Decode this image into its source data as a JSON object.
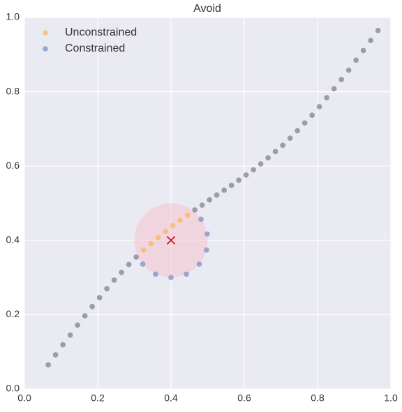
{
  "chart_data": {
    "type": "scatter",
    "title": "Avoid",
    "xlim": [
      0,
      1
    ],
    "ylim": [
      0,
      1
    ],
    "xticks": [
      {
        "value": 0,
        "label": "0.0"
      },
      0.2,
      0.4,
      0.6,
      0.8,
      {
        "value": 1,
        "label": "1.0"
      }
    ],
    "yticks": [
      {
        "value": 0,
        "label": "0.0"
      },
      0.2,
      0.4,
      0.6,
      0.8,
      {
        "value": 1,
        "label": "1.0"
      }
    ],
    "grid": true,
    "legend": "upper left",
    "series": [
      {
        "name": "Unconstrained",
        "color": "#f9b34a",
        "x": [
          0.065,
          0.085,
          0.105,
          0.125,
          0.145,
          0.165,
          0.185,
          0.205,
          0.225,
          0.245,
          0.265,
          0.285,
          0.305,
          0.325,
          0.345,
          0.365,
          0.385,
          0.405,
          0.425,
          0.445,
          0.465,
          0.485,
          0.505,
          0.525,
          0.545,
          0.565,
          0.585,
          0.605,
          0.625,
          0.645,
          0.665,
          0.685,
          0.705,
          0.725,
          0.745,
          0.765,
          0.785,
          0.805,
          0.825,
          0.845,
          0.865,
          0.885,
          0.905,
          0.925,
          0.945,
          0.965
        ],
        "y": [
          0.065,
          0.092,
          0.119,
          0.145,
          0.172,
          0.197,
          0.222,
          0.246,
          0.27,
          0.293,
          0.314,
          0.335,
          0.355,
          0.374,
          0.391,
          0.408,
          0.424,
          0.44,
          0.454,
          0.468,
          0.482,
          0.495,
          0.509,
          0.522,
          0.535,
          0.548,
          0.562,
          0.576,
          0.59,
          0.606,
          0.622,
          0.639,
          0.656,
          0.675,
          0.695,
          0.716,
          0.737,
          0.76,
          0.784,
          0.808,
          0.833,
          0.858,
          0.885,
          0.911,
          0.938,
          0.965
        ]
      },
      {
        "name": "Constrained",
        "color": "#6a86c0",
        "x": [
          0.065,
          0.085,
          0.105,
          0.125,
          0.145,
          0.165,
          0.185,
          0.205,
          0.225,
          0.245,
          0.265,
          0.285,
          0.305,
          0.323,
          0.358,
          0.4,
          0.442,
          0.477,
          0.497,
          0.499,
          0.482,
          0.465,
          0.485,
          0.505,
          0.525,
          0.545,
          0.565,
          0.585,
          0.605,
          0.625,
          0.645,
          0.665,
          0.685,
          0.705,
          0.725,
          0.745,
          0.765,
          0.785,
          0.805,
          0.825,
          0.845,
          0.865,
          0.885,
          0.905,
          0.925,
          0.945,
          0.965
        ],
        "y": [
          0.065,
          0.092,
          0.119,
          0.145,
          0.172,
          0.197,
          0.222,
          0.246,
          0.27,
          0.293,
          0.314,
          0.335,
          0.355,
          0.336,
          0.309,
          0.3,
          0.309,
          0.336,
          0.374,
          0.417,
          0.457,
          0.482,
          0.495,
          0.509,
          0.522,
          0.535,
          0.548,
          0.562,
          0.576,
          0.59,
          0.606,
          0.622,
          0.639,
          0.656,
          0.675,
          0.695,
          0.716,
          0.737,
          0.76,
          0.784,
          0.808,
          0.833,
          0.858,
          0.885,
          0.911,
          0.938,
          0.965
        ]
      }
    ],
    "obstacle": {
      "center": [
        0.4,
        0.4
      ],
      "radius": 0.1,
      "color": "#f4c2cf",
      "marker_color": "#e0101a"
    }
  }
}
